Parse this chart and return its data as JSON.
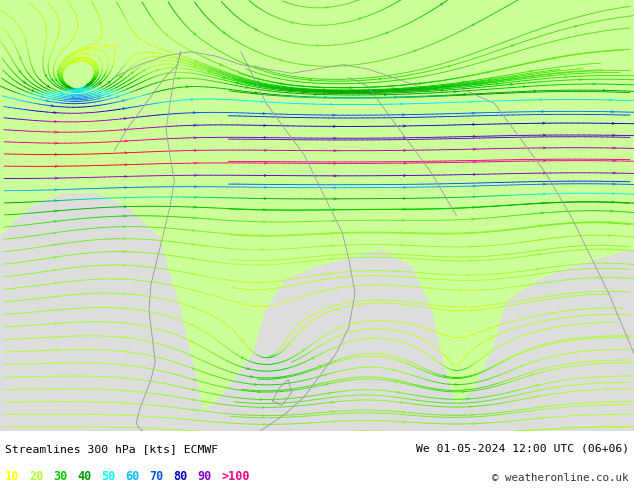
{
  "title_left": "Streamlines 300 hPa [kts] ECMWF",
  "title_right": "We 01-05-2024 12:00 UTC (06+06)",
  "copyright": "© weatheronline.co.uk",
  "legend_values": [
    "10",
    "20",
    "30",
    "40",
    "50",
    "60",
    "70",
    "80",
    "90",
    ">100"
  ],
  "legend_colors": [
    "#ffff00",
    "#adff2f",
    "#00cc00",
    "#009900",
    "#00ffff",
    "#00bfff",
    "#0055ff",
    "#0000cc",
    "#8800cc",
    "#ff0088"
  ],
  "bg_color_land": "#ccff99",
  "bg_color_low": "#dddddd",
  "fig_bg": "#ffffff",
  "bottom_bar_color": "#d8d8d8",
  "fig_width": 6.34,
  "fig_height": 4.9,
  "dpi": 100,
  "speed_color_stops": [
    [
      0.0,
      "#ffff00"
    ],
    [
      0.1,
      "#adff2f"
    ],
    [
      0.2,
      "#00cc00"
    ],
    [
      0.3,
      "#009900"
    ],
    [
      0.4,
      "#00ffff"
    ],
    [
      0.5,
      "#00bfff"
    ],
    [
      0.6,
      "#0055ff"
    ],
    [
      0.7,
      "#0000cc"
    ],
    [
      0.8,
      "#8800cc"
    ],
    [
      0.9,
      "#ff0088"
    ],
    [
      1.0,
      "#ff0000"
    ]
  ]
}
